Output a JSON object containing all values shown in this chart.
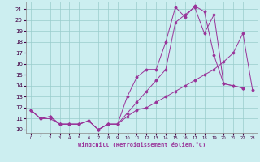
{
  "background_color": "#cceef0",
  "grid_color": "#99cccc",
  "line_color": "#993399",
  "xlim": [
    -0.5,
    23.5
  ],
  "ylim": [
    9.7,
    21.7
  ],
  "xlabel": "Windchill (Refroidissement éolien,°C)",
  "xticks": [
    0,
    1,
    2,
    3,
    4,
    5,
    6,
    7,
    8,
    9,
    10,
    11,
    12,
    13,
    14,
    15,
    16,
    17,
    18,
    19,
    20,
    21,
    22,
    23
  ],
  "yticks": [
    10,
    11,
    12,
    13,
    14,
    15,
    16,
    17,
    18,
    19,
    20,
    21
  ],
  "series": [
    {
      "x": [
        0,
        1,
        2,
        3,
        4,
        5,
        6,
        7,
        8,
        9,
        10,
        11,
        12,
        13,
        14,
        15,
        16,
        17,
        18,
        19,
        20,
        21,
        22
      ],
      "y": [
        11.8,
        11.0,
        11.0,
        10.5,
        10.5,
        10.5,
        10.8,
        10.0,
        10.5,
        10.5,
        13.0,
        14.8,
        15.5,
        15.5,
        18.0,
        21.2,
        20.3,
        21.3,
        20.8,
        16.8,
        14.2,
        14.0,
        13.8
      ]
    },
    {
      "x": [
        0,
        1,
        2,
        3,
        4,
        5,
        6,
        7,
        8,
        9,
        10,
        11,
        12,
        13,
        14,
        15,
        16,
        17,
        18,
        19,
        20,
        21,
        22
      ],
      "y": [
        11.8,
        11.0,
        11.2,
        10.5,
        10.5,
        10.5,
        10.8,
        10.0,
        10.5,
        10.5,
        11.5,
        12.5,
        13.5,
        14.5,
        15.5,
        19.8,
        20.5,
        21.2,
        18.8,
        20.5,
        14.2,
        14.0,
        13.8
      ]
    },
    {
      "x": [
        0,
        1,
        2,
        3,
        4,
        5,
        6,
        7,
        8,
        9,
        10,
        11,
        12,
        13,
        14,
        15,
        16,
        17,
        18,
        19,
        20,
        21,
        22,
        23
      ],
      "y": [
        11.8,
        11.0,
        11.2,
        10.5,
        10.5,
        10.5,
        10.8,
        10.0,
        10.5,
        10.5,
        11.2,
        11.8,
        12.0,
        12.5,
        13.0,
        13.5,
        14.0,
        14.5,
        15.0,
        15.5,
        16.2,
        17.0,
        18.8,
        13.6
      ]
    }
  ]
}
